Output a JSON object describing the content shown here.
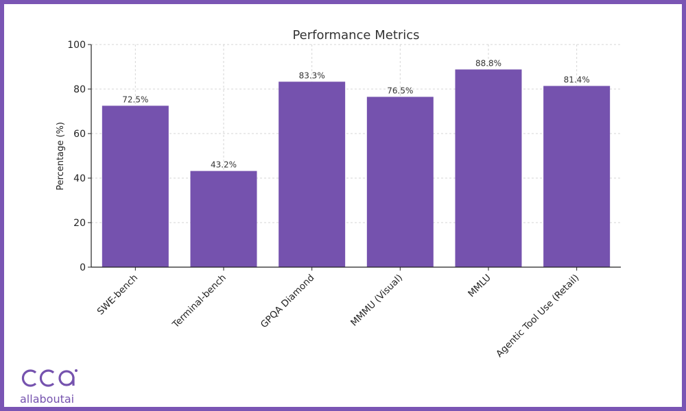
{
  "chart_data": {
    "type": "bar",
    "title": "Performance Metrics",
    "xlabel": "",
    "ylabel": "Percentage (%)",
    "categories": [
      "SWE-bench",
      "Terminal-bench",
      "GPQA Diamond",
      "MMMU (Visual)",
      "MMLU",
      "Agentic Tool Use (Retail)"
    ],
    "values": [
      72.5,
      43.2,
      83.3,
      76.5,
      88.8,
      81.4
    ],
    "data_labels": [
      "72.5%",
      "43.2%",
      "83.3%",
      "76.5%",
      "88.8%",
      "81.4%"
    ],
    "ylim": [
      0,
      100
    ],
    "yticks": [
      0,
      20,
      40,
      60,
      80,
      100
    ],
    "grid": true,
    "bar_color": "#7552ae",
    "frame_color": "#7a55b4"
  },
  "logo": {
    "text": "allaboutai",
    "mark": "aai"
  }
}
